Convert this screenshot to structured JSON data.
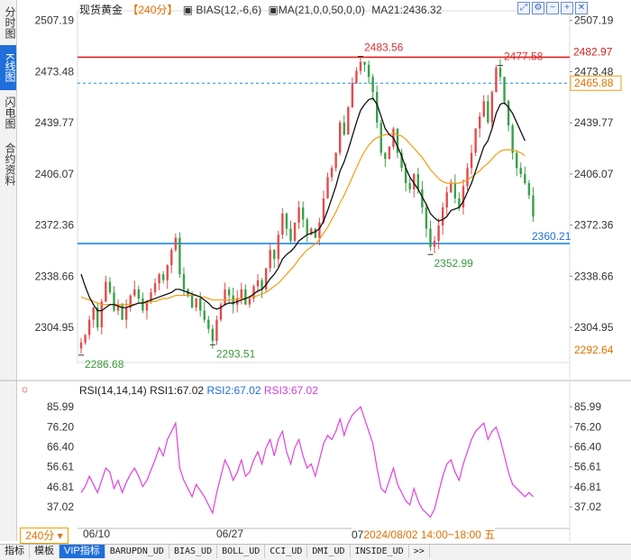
{
  "sidebar": {
    "tabs": [
      {
        "label": "分时图",
        "active": false
      },
      {
        "label": "K线图",
        "active": true
      },
      {
        "label": "闪电图",
        "active": false
      },
      {
        "label": "合约资料",
        "active": false
      }
    ]
  },
  "legend": {
    "name": "现货黄金",
    "period": "【240分】",
    "bias": "BIAS(12,-6,6)",
    "ma": "MA(21,0,0,50,0,0)",
    "ma21": "MA21:2436.32"
  },
  "toolbar_icons": [
    "expand-icon",
    "settings-icon",
    "minus-icon",
    "plus-icon",
    "close-icon"
  ],
  "rsi_legend": {
    "params": "RSI(14,14,14)",
    "rsi1": "RSI1:67.02",
    "rsi2": "RSI2:67.02",
    "rsi3": "RSI3:67.02"
  },
  "bottom": {
    "period": "240分",
    "time_box": "2024/08/02 14:00~18:00 五",
    "time_prefix": "07",
    "tabs": [
      "指标",
      "模板",
      "VIP指标",
      "BARUPDN_UD",
      "BIAS_UD",
      "BOLL_UD",
      "CCI_UD",
      "DMI_UD",
      "INSIDE_UD",
      ">>"
    ]
  },
  "chart_data": [
    {
      "type": "candlestick",
      "title": "现货黄金 240分",
      "y_ticks": [
        2507.19,
        2473.48,
        2439.77,
        2406.07,
        2372.36,
        2338.66,
        2304.95
      ],
      "ylim": [
        2283,
        2510
      ],
      "x_labels": [
        "06/10",
        "06/27",
        "07"
      ],
      "price_labels": {
        "right_red": "2482.97",
        "right_orange_dashed": "2465.88",
        "right_blue": "2360.21",
        "right_bottom": "2292.64"
      },
      "annotations": [
        {
          "text": "2483.56",
          "value": 2483.56,
          "color": "#d33"
        },
        {
          "text": "2477.58",
          "value": 2477.58,
          "color": "#d33"
        },
        {
          "text": "2352.99",
          "value": 2352.99,
          "color": "#3a9a3a"
        },
        {
          "text": "2293.51",
          "value": 2293.51,
          "color": "#3a9a3a"
        },
        {
          "text": "2286.68",
          "value": 2286.68,
          "color": "#3a9a3a"
        }
      ],
      "hlines": [
        {
          "value": 2482.97,
          "color": "#e02020",
          "style": "solid"
        },
        {
          "value": 2465.88,
          "color": "#1e88e5",
          "style": "dashed"
        },
        {
          "value": 2360.21,
          "color": "#1e88e5",
          "style": "solid"
        }
      ],
      "closes": [
        2295,
        2300,
        2310,
        2318,
        2305,
        2322,
        2335,
        2328,
        2316,
        2320,
        2310,
        2318,
        2326,
        2330,
        2324,
        2316,
        2322,
        2328,
        2334,
        2340,
        2336,
        2346,
        2356,
        2364,
        2340,
        2330,
        2326,
        2318,
        2324,
        2316,
        2310,
        2304,
        2296,
        2310,
        2320,
        2330,
        2326,
        2320,
        2324,
        2330,
        2320,
        2324,
        2332,
        2336,
        2330,
        2344,
        2356,
        2350,
        2366,
        2380,
        2370,
        2362,
        2374,
        2384,
        2376,
        2366,
        2370,
        2364,
        2374,
        2390,
        2404,
        2410,
        2420,
        2440,
        2432,
        2450,
        2466,
        2474,
        2480,
        2478,
        2470,
        2460,
        2440,
        2420,
        2416,
        2424,
        2436,
        2420,
        2410,
        2400,
        2396,
        2406,
        2396,
        2384,
        2370,
        2358,
        2362,
        2372,
        2384,
        2394,
        2400,
        2390,
        2384,
        2398,
        2410,
        2420,
        2436,
        2444,
        2454,
        2440,
        2460,
        2476,
        2470,
        2454,
        2438,
        2420,
        2410,
        2406,
        2400,
        2392,
        2378
      ],
      "ma_black": [
        2340,
        2332,
        2325,
        2320,
        2316,
        2316,
        2318,
        2320,
        2320,
        2319,
        2318,
        2318,
        2319,
        2320,
        2321,
        2321,
        2322,
        2323,
        2324,
        2325,
        2326,
        2327,
        2328,
        2330,
        2330,
        2329,
        2328,
        2327,
        2326,
        2325,
        2323,
        2321,
        2318,
        2317,
        2318,
        2320,
        2321,
        2321,
        2322,
        2323,
        2324,
        2325,
        2327,
        2329,
        2330,
        2333,
        2337,
        2340,
        2344,
        2350,
        2353,
        2355,
        2358,
        2362,
        2364,
        2366,
        2367,
        2368,
        2370,
        2375,
        2382,
        2390,
        2398,
        2408,
        2414,
        2422,
        2431,
        2440,
        2448,
        2452,
        2455,
        2456,
        2452,
        2444,
        2436,
        2432,
        2430,
        2424,
        2418,
        2410,
        2404,
        2400,
        2396,
        2391,
        2386,
        2380,
        2377,
        2375,
        2376,
        2378,
        2382,
        2383,
        2384,
        2388,
        2394,
        2400,
        2408,
        2416,
        2424,
        2428,
        2436,
        2446,
        2452,
        2453,
        2450,
        2446,
        2440,
        2434,
        2428
      ],
      "ma_orange": [
        2325,
        2324,
        2323,
        2322,
        2321,
        2320,
        2320,
        2320,
        2320,
        2320,
        2320,
        2320,
        2320,
        2320,
        2321,
        2321,
        2321,
        2322,
        2322,
        2323,
        2324,
        2324,
        2325,
        2326,
        2326,
        2326,
        2326,
        2326,
        2326,
        2325,
        2325,
        2324,
        2323,
        2323,
        2323,
        2323,
        2323,
        2323,
        2324,
        2324,
        2324,
        2325,
        2325,
        2326,
        2327,
        2328,
        2330,
        2332,
        2334,
        2337,
        2340,
        2343,
        2346,
        2350,
        2353,
        2356,
        2358,
        2360,
        2363,
        2367,
        2371,
        2376,
        2381,
        2387,
        2392,
        2398,
        2404,
        2410,
        2416,
        2421,
        2425,
        2428,
        2430,
        2431,
        2432,
        2432,
        2433,
        2432,
        2431,
        2429,
        2426,
        2423,
        2420,
        2417,
        2413,
        2409,
        2406,
        2403,
        2401,
        2400,
        2400,
        2400,
        2400,
        2401,
        2402,
        2404,
        2406,
        2408,
        2411,
        2413,
        2416,
        2419,
        2421,
        2422,
        2422,
        2422,
        2421,
        2420,
        2418
      ]
    },
    {
      "type": "line",
      "title": "RSI(14,14,14)",
      "y_ticks": [
        85.99,
        76.2,
        66.4,
        56.61,
        46.81,
        37.02
      ],
      "ylim": [
        30,
        90
      ],
      "series": [
        {
          "name": "RSI1",
          "color": "#e040e0",
          "values": [
            44,
            47,
            52,
            48,
            44,
            50,
            56,
            54,
            46,
            50,
            44,
            49,
            53,
            56,
            52,
            47,
            50,
            55,
            60,
            66,
            62,
            70,
            74,
            78,
            56,
            50,
            46,
            42,
            48,
            45,
            42,
            38,
            34,
            44,
            52,
            60,
            56,
            50,
            54,
            60,
            52,
            54,
            60,
            64,
            58,
            66,
            70,
            62,
            70,
            74,
            64,
            58,
            66,
            70,
            62,
            56,
            58,
            52,
            60,
            68,
            72,
            70,
            74,
            80,
            72,
            78,
            82,
            84,
            86,
            80,
            74,
            68,
            56,
            46,
            44,
            50,
            56,
            48,
            44,
            40,
            38,
            46,
            40,
            36,
            34,
            32,
            36,
            44,
            52,
            58,
            60,
            54,
            50,
            58,
            64,
            70,
            74,
            76,
            78,
            70,
            74,
            76,
            70,
            62,
            54,
            48,
            46,
            44,
            42,
            44,
            42
          ]
        }
      ]
    }
  ]
}
